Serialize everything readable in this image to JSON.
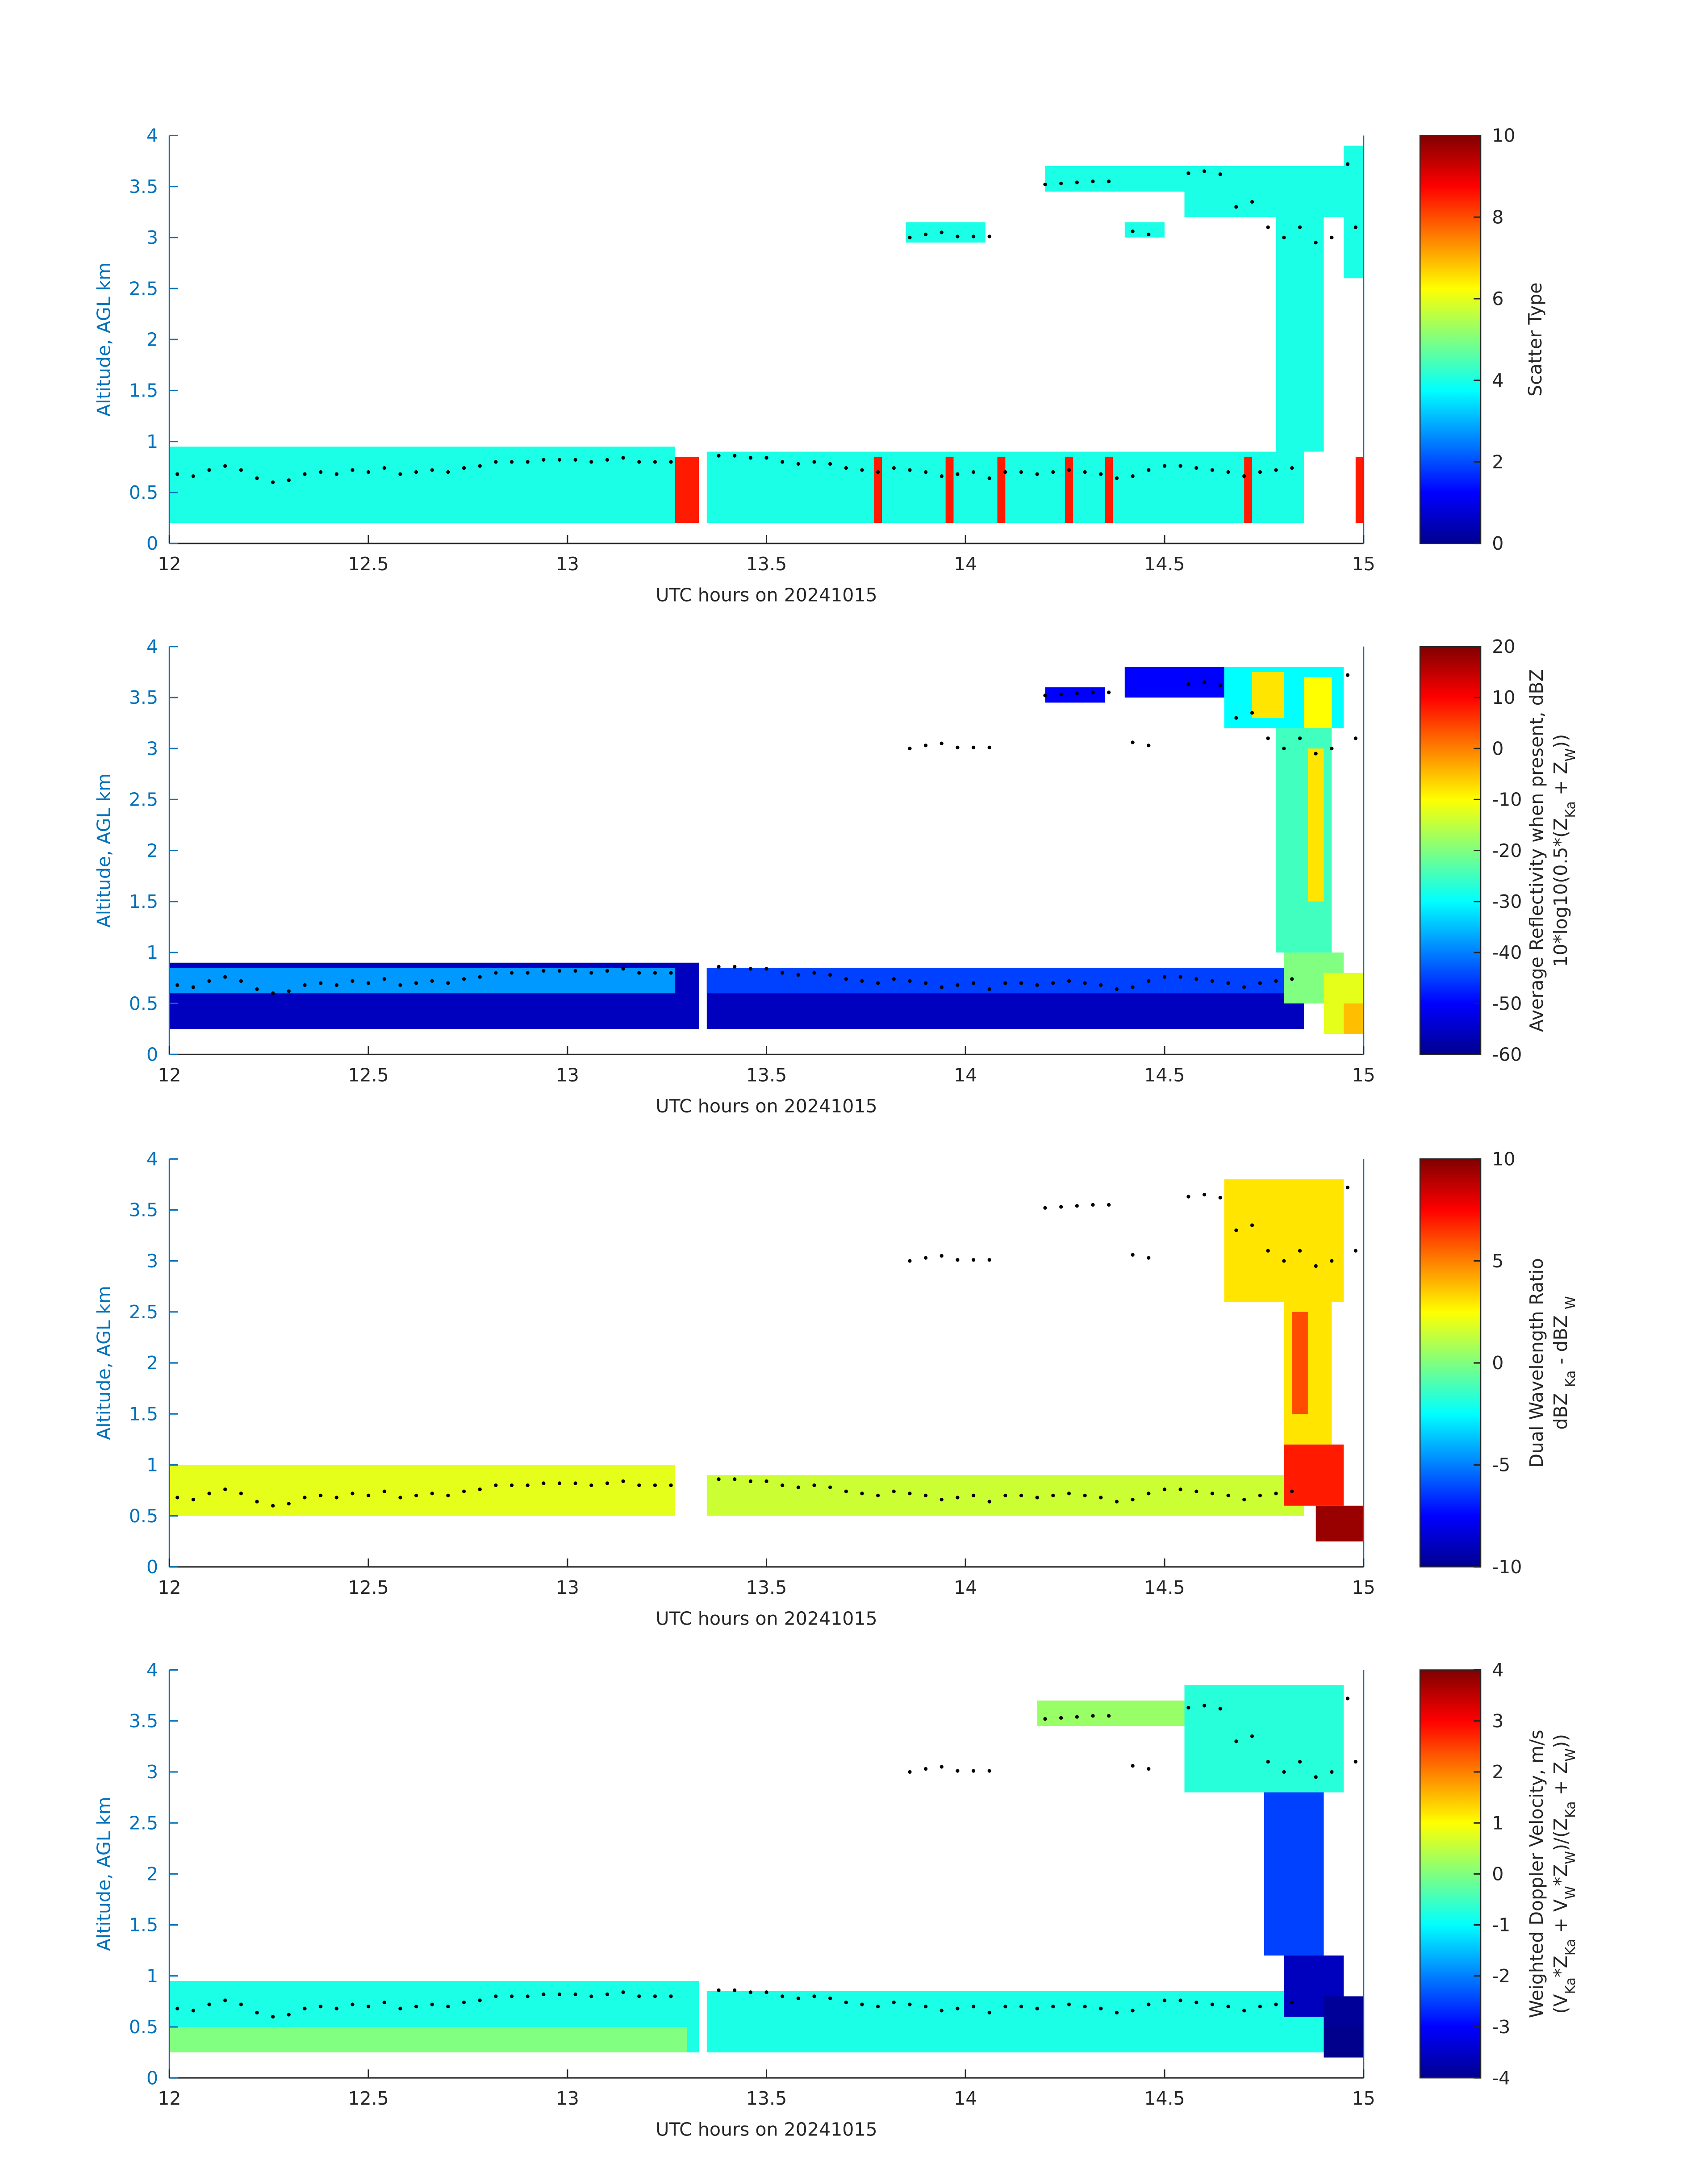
{
  "chart_data": [
    {
      "type": "heatmap",
      "xlabel": "UTC hours on 20241015",
      "ylabel": "Altitude, AGL km",
      "xlim": [
        12,
        15
      ],
      "xticks": [
        12,
        12.5,
        13,
        13.5,
        14,
        14.5,
        15
      ],
      "ylim": [
        0,
        4
      ],
      "yticks": [
        0,
        0.5,
        1,
        1.5,
        2,
        2.5,
        3,
        3.5,
        4
      ],
      "clim": [
        0,
        10
      ],
      "cticks": [
        0,
        2,
        4,
        6,
        8,
        10
      ],
      "colorbar_label": [
        [
          "Scatter Type"
        ]
      ],
      "patches": [
        {
          "x": [
            12,
            13.27
          ],
          "y": [
            0.2,
            0.95
          ],
          "value": 4
        },
        {
          "x": [
            13.27,
            13.33
          ],
          "y": [
            0.2,
            0.85
          ],
          "value": 8.5
        },
        {
          "x": [
            13.35,
            14.85
          ],
          "y": [
            0.2,
            0.9
          ],
          "value": 4
        },
        {
          "x": [
            13.77,
            13.79
          ],
          "y": [
            0.2,
            0.85
          ],
          "value": 8.5
        },
        {
          "x": [
            13.95,
            13.97
          ],
          "y": [
            0.2,
            0.85
          ],
          "value": 8.5
        },
        {
          "x": [
            14.08,
            14.1
          ],
          "y": [
            0.2,
            0.85
          ],
          "value": 8.5
        },
        {
          "x": [
            14.25,
            14.27
          ],
          "y": [
            0.2,
            0.85
          ],
          "value": 8.5
        },
        {
          "x": [
            14.35,
            14.37
          ],
          "y": [
            0.2,
            0.85
          ],
          "value": 8.5
        },
        {
          "x": [
            14.7,
            14.72
          ],
          "y": [
            0.2,
            0.85
          ],
          "value": 8.5
        },
        {
          "x": [
            14.98,
            15
          ],
          "y": [
            0.2,
            0.85
          ],
          "value": 8.5
        },
        {
          "x": [
            13.85,
            14.05
          ],
          "y": [
            2.95,
            3.15
          ],
          "value": 4
        },
        {
          "x": [
            14.2,
            14.55
          ],
          "y": [
            3.45,
            3.7
          ],
          "value": 4
        },
        {
          "x": [
            14.4,
            14.5
          ],
          "y": [
            3,
            3.15
          ],
          "value": 4
        },
        {
          "x": [
            14.55,
            14.95
          ],
          "y": [
            3.2,
            3.7
          ],
          "value": 4
        },
        {
          "x": [
            14.78,
            14.9
          ],
          "y": [
            0.9,
            3.3
          ],
          "value": 4
        },
        {
          "x": [
            14.95,
            15
          ],
          "y": [
            2.6,
            3.9
          ],
          "value": 4
        }
      ],
      "marker_color": "#000000",
      "markers": {
        "x": [
          12.02,
          12.06,
          12.1,
          12.14,
          12.18,
          12.22,
          12.26,
          12.3,
          12.34,
          12.38,
          12.42,
          12.46,
          12.5,
          12.54,
          12.58,
          12.62,
          12.66,
          12.7,
          12.74,
          12.78,
          12.82,
          12.86,
          12.9,
          12.94,
          12.98,
          13.02,
          13.06,
          13.1,
          13.14,
          13.18,
          13.22,
          13.26,
          13.38,
          13.42,
          13.46,
          13.5,
          13.54,
          13.58,
          13.62,
          13.66,
          13.7,
          13.74,
          13.78,
          13.82,
          13.86,
          13.9,
          13.94,
          13.98,
          14.02,
          14.06,
          14.1,
          14.14,
          14.18,
          14.22,
          14.26,
          14.3,
          14.34,
          14.38,
          14.42,
          14.46,
          14.5,
          14.54,
          14.58,
          14.62,
          14.66,
          14.7,
          14.74,
          14.78,
          14.82,
          13.86,
          13.9,
          13.94,
          13.98,
          14.02,
          14.06,
          14.2,
          14.24,
          14.28,
          14.32,
          14.36,
          14.42,
          14.46,
          14.56,
          14.6,
          14.64,
          14.68,
          14.72,
          14.76,
          14.8,
          14.84,
          14.88,
          14.92,
          14.96,
          14.98
        ],
        "y": [
          0.68,
          0.66,
          0.72,
          0.76,
          0.72,
          0.64,
          0.6,
          0.62,
          0.68,
          0.7,
          0.68,
          0.72,
          0.7,
          0.74,
          0.68,
          0.7,
          0.72,
          0.7,
          0.74,
          0.76,
          0.8,
          0.8,
          0.8,
          0.82,
          0.82,
          0.82,
          0.8,
          0.82,
          0.84,
          0.8,
          0.8,
          0.8,
          0.86,
          0.86,
          0.84,
          0.84,
          0.8,
          0.78,
          0.8,
          0.78,
          0.74,
          0.72,
          0.7,
          0.74,
          0.72,
          0.7,
          0.66,
          0.68,
          0.7,
          0.64,
          0.7,
          0.7,
          0.68,
          0.7,
          0.72,
          0.7,
          0.68,
          0.64,
          0.66,
          0.72,
          0.76,
          0.76,
          0.74,
          0.72,
          0.7,
          0.66,
          0.7,
          0.72,
          0.74,
          3.0,
          3.03,
          3.05,
          3.01,
          3.01,
          3.01,
          3.52,
          3.53,
          3.54,
          3.55,
          3.55,
          3.06,
          3.03,
          3.63,
          3.65,
          3.62,
          3.3,
          3.35,
          3.1,
          3.0,
          3.1,
          2.95,
          3.0,
          3.72,
          3.1
        ]
      }
    },
    {
      "type": "heatmap",
      "xlabel": "UTC hours on 20241015",
      "ylabel": "Altitude, AGL km",
      "xlim": [
        12,
        15
      ],
      "xticks": [
        12,
        12.5,
        13,
        13.5,
        14,
        14.5,
        15
      ],
      "ylim": [
        0,
        4
      ],
      "yticks": [
        0,
        0.5,
        1,
        1.5,
        2,
        2.5,
        3,
        3.5,
        4
      ],
      "clim": [
        -60,
        20
      ],
      "cticks": [
        -60,
        -50,
        -40,
        -30,
        -20,
        -10,
        0,
        10,
        20
      ],
      "colorbar_label": [
        [
          "Average Reflectivity when present, dBZ"
        ],
        [
          "10*log10(0.5*(Z",
          "Ka",
          " + Z",
          "W",
          "))"
        ]
      ],
      "patches": [
        {
          "x": [
            12,
            13.33
          ],
          "y": [
            0.25,
            0.9
          ],
          "value": -55
        },
        {
          "x": [
            12,
            13.27
          ],
          "y": [
            0.6,
            0.85
          ],
          "value": -38
        },
        {
          "x": [
            13.35,
            14.85
          ],
          "y": [
            0.25,
            0.85
          ],
          "value": -55
        },
        {
          "x": [
            13.35,
            14.85
          ],
          "y": [
            0.6,
            0.85
          ],
          "value": -45
        },
        {
          "x": [
            14.2,
            14.35
          ],
          "y": [
            3.45,
            3.6
          ],
          "value": -50
        },
        {
          "x": [
            14.4,
            14.65
          ],
          "y": [
            3.5,
            3.8
          ],
          "value": -50
        },
        {
          "x": [
            14.65,
            14.95
          ],
          "y": [
            3.2,
            3.8
          ],
          "value": -30
        },
        {
          "x": [
            14.72,
            14.8
          ],
          "y": [
            3.3,
            3.75
          ],
          "value": -8
        },
        {
          "x": [
            14.85,
            14.92
          ],
          "y": [
            3.2,
            3.7
          ],
          "value": -10
        },
        {
          "x": [
            14.78,
            14.92
          ],
          "y": [
            1,
            3.2
          ],
          "value": -25
        },
        {
          "x": [
            14.86,
            14.9
          ],
          "y": [
            1.5,
            3
          ],
          "value": -8
        },
        {
          "x": [
            14.8,
            14.95
          ],
          "y": [
            0.5,
            1
          ],
          "value": -20
        },
        {
          "x": [
            14.9,
            15
          ],
          "y": [
            0.2,
            0.8
          ],
          "value": -12
        },
        {
          "x": [
            14.95,
            15
          ],
          "y": [
            0.2,
            0.5
          ],
          "value": -5
        }
      ]
    },
    {
      "type": "heatmap",
      "xlabel": "UTC hours on 20241015",
      "ylabel": "Altitude, AGL km",
      "xlim": [
        12,
        15
      ],
      "xticks": [
        12,
        12.5,
        13,
        13.5,
        14,
        14.5,
        15
      ],
      "ylim": [
        0,
        4
      ],
      "yticks": [
        0,
        0.5,
        1,
        1.5,
        2,
        2.5,
        3,
        3.5,
        4
      ],
      "clim": [
        -10,
        10
      ],
      "cticks": [
        -10,
        -5,
        0,
        5,
        10
      ],
      "colorbar_label": [
        [
          "Dual Wavelength Ratio"
        ],
        [
          "dBZ ",
          "Ka",
          " - dBZ ",
          "W"
        ]
      ],
      "patches": [
        {
          "x": [
            12,
            13.27
          ],
          "y": [
            0.5,
            1
          ],
          "value": 2
        },
        {
          "x": [
            13.35,
            14.85
          ],
          "y": [
            0.5,
            0.9
          ],
          "value": 1.5
        },
        {
          "x": [
            14.65,
            14.95
          ],
          "y": [
            2.6,
            3.8
          ],
          "value": 3
        },
        {
          "x": [
            14.8,
            14.92
          ],
          "y": [
            1.2,
            2.6
          ],
          "value": 3
        },
        {
          "x": [
            14.82,
            14.86
          ],
          "y": [
            1.5,
            2.5
          ],
          "value": 6
        },
        {
          "x": [
            14.8,
            14.95
          ],
          "y": [
            0.6,
            1.2
          ],
          "value": 7
        },
        {
          "x": [
            14.88,
            15
          ],
          "y": [
            0.25,
            0.6
          ],
          "value": 9.5
        }
      ]
    },
    {
      "type": "heatmap",
      "xlabel": "UTC hours on 20241015",
      "ylabel": "Altitude, AGL km",
      "xlim": [
        12,
        15
      ],
      "xticks": [
        12,
        12.5,
        13,
        13.5,
        14,
        14.5,
        15
      ],
      "ylim": [
        0,
        4
      ],
      "yticks": [
        0,
        0.5,
        1,
        1.5,
        2,
        2.5,
        3,
        3.5,
        4
      ],
      "clim": [
        -4,
        4
      ],
      "cticks": [
        -4,
        -3,
        -2,
        -1,
        0,
        1,
        2,
        3,
        4
      ],
      "colorbar_label": [
        [
          "Weighted Doppler Velocity, m/s"
        ],
        [
          "(V",
          "Ka",
          "*Z",
          "Ka",
          " + V",
          "W",
          "*Z",
          "W",
          ")/(Z",
          "Ka",
          " + Z",
          "W",
          "))"
        ]
      ],
      "patches": [
        {
          "x": [
            12,
            13.33
          ],
          "y": [
            0.25,
            0.95
          ],
          "value": -0.8
        },
        {
          "x": [
            12,
            13.3
          ],
          "y": [
            0.25,
            0.5
          ],
          "value": 0
        },
        {
          "x": [
            13.35,
            14.9
          ],
          "y": [
            0.25,
            0.85
          ],
          "value": -0.8
        },
        {
          "x": [
            14.18,
            14.55
          ],
          "y": [
            3.45,
            3.7
          ],
          "value": 0.2
        },
        {
          "x": [
            14.55,
            14.95
          ],
          "y": [
            2.8,
            3.85
          ],
          "value": -0.7
        },
        {
          "x": [
            14.75,
            14.9
          ],
          "y": [
            1.2,
            2.8
          ],
          "value": -2.5
        },
        {
          "x": [
            14.8,
            14.95
          ],
          "y": [
            0.6,
            1.2
          ],
          "value": -3.5
        },
        {
          "x": [
            14.9,
            15
          ],
          "y": [
            0.2,
            0.8
          ],
          "value": -3.8
        },
        {
          "x": [
            14.9,
            15
          ],
          "y": [
            0.2,
            0.5
          ],
          "value": -3.9
        }
      ]
    }
  ]
}
